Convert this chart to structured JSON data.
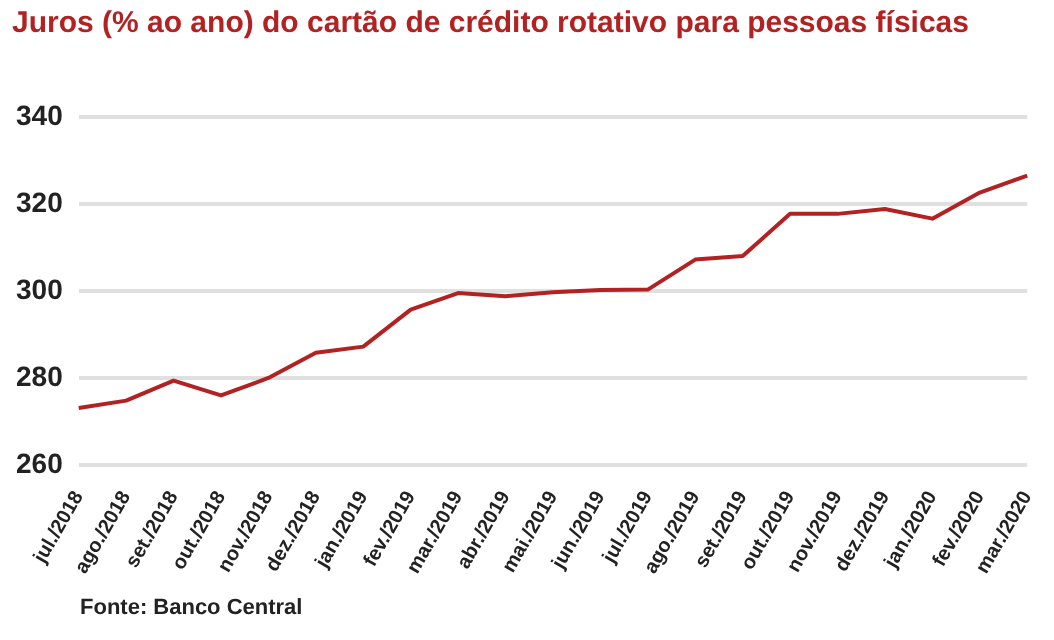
{
  "chart_data": {
    "type": "line",
    "title": "Juros (% ao ano) do cartão de crédito rotativo para pessoas físicas",
    "categories": [
      "jul./2018",
      "ago./2018",
      "set./2018",
      "out./2018",
      "nov./2018",
      "dez./2018",
      "jan./2019",
      "fev./2019",
      "mar./2019",
      "abr./2019",
      "mai./2019",
      "jun./2019",
      "jul./2019",
      "ago./2019",
      "set./2019",
      "out./2019",
      "nov./2019",
      "dez./2019",
      "jan./2020",
      "fev./2020",
      "mar./2020"
    ],
    "series": [
      {
        "color": "#b22222",
        "values": [
          273.1,
          274.8,
          279.4,
          276,
          280,
          285.8,
          287.2,
          295.7,
          299.5,
          298.8,
          299.7,
          300.2,
          300.3,
          307.2,
          308,
          317.7,
          317.7,
          318.8,
          316.6,
          322.6,
          326.5
        ]
      }
    ],
    "ylim": [
      260,
      340
    ],
    "yticks": [
      260,
      280,
      300,
      320,
      340
    ],
    "grid": "y",
    "legend": false,
    "marker": "none",
    "annotations": [
      "Fonte: Banco Central"
    ]
  }
}
